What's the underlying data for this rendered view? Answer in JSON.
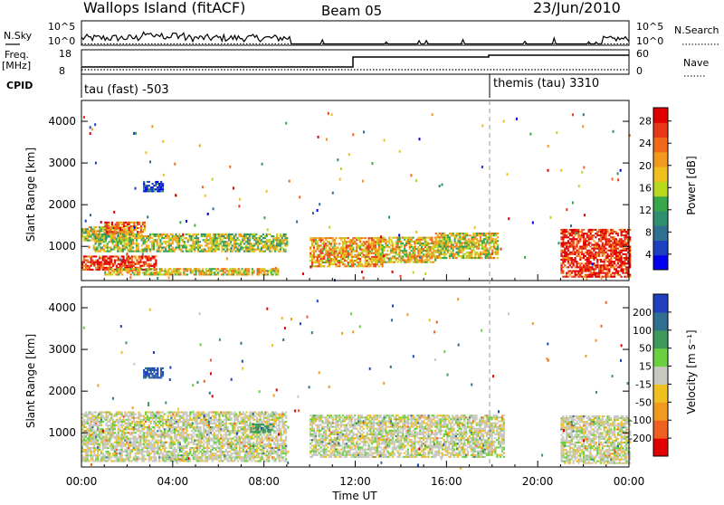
{
  "header": {
    "station": "Wallops Island (fitACF)",
    "beam": "Beam 05",
    "date": "23/Jun/2010"
  },
  "top_panels": {
    "nsky_label": "N.Sky",
    "nsky_ticks": [
      "10^5",
      "10^0"
    ],
    "nsearch_label": "N.Search",
    "nsearch_ticks": [
      "10^5",
      "10^0"
    ],
    "freq_label": "Freq.",
    "freq_unit": "[MHz]",
    "freq_ticks": [
      "18",
      "8"
    ],
    "nave_label": "Nave",
    "nave_ticks": [
      "60",
      "0"
    ],
    "cpid_label": "CPID",
    "cpid_entries": [
      {
        "text": "tau (fast) -503",
        "start_hour": 0
      },
      {
        "text": "themis (tau) 3310",
        "start_hour": 18
      }
    ]
  },
  "chart_data": [
    {
      "type": "heatmap",
      "name": "power",
      "ylabel": "Slant Range [km]",
      "ylim": [
        180,
        4500
      ],
      "yticks": [
        "4000",
        "3000",
        "2000",
        "1000"
      ],
      "xlim": [
        0,
        24
      ],
      "colorbar": {
        "label": "Power [dB]",
        "ticks": [
          "28",
          "24",
          "20",
          "16",
          "12",
          "8",
          "4"
        ],
        "colors": [
          "#0000ee",
          "#1e3fbf",
          "#2f6f8f",
          "#2f8f6f",
          "#36a84a",
          "#b8d820",
          "#f0c020",
          "#f29a20",
          "#ee6a18",
          "#e83818",
          "#e00000"
        ]
      },
      "regions": [
        {
          "t": [
            0.0,
            3.3
          ],
          "r": [
            420,
            780
          ],
          "level": 0.92
        },
        {
          "t": [
            0.0,
            2.2
          ],
          "r": [
            1120,
            1480
          ],
          "level": 0.55
        },
        {
          "t": [
            1.0,
            2.8
          ],
          "r": [
            1280,
            1560
          ],
          "level": 0.78
        },
        {
          "t": [
            0.5,
            9.0
          ],
          "r": [
            860,
            1300
          ],
          "level": 0.5
        },
        {
          "t": [
            1.0,
            8.6
          ],
          "r": [
            300,
            480
          ],
          "level": 0.6
        },
        {
          "t": [
            2.7,
            3.6
          ],
          "r": [
            2300,
            2560
          ],
          "level": 0.15
        },
        {
          "t": [
            10.0,
            13.2
          ],
          "r": [
            500,
            1200
          ],
          "level": 0.68
        },
        {
          "t": [
            13.0,
            15.5
          ],
          "r": [
            600,
            1200
          ],
          "level": 0.6
        },
        {
          "t": [
            15.5,
            18.2
          ],
          "r": [
            700,
            1300
          ],
          "level": 0.58
        },
        {
          "t": [
            21.0,
            24.0
          ],
          "r": [
            250,
            1400
          ],
          "level": 0.95
        }
      ]
    },
    {
      "type": "heatmap",
      "name": "velocity",
      "ylabel": "Slant Range [km]",
      "xlabel": "Time UT",
      "ylim": [
        180,
        4500
      ],
      "yticks": [
        "4000",
        "3000",
        "2000",
        "1000"
      ],
      "xlim": [
        0,
        24
      ],
      "xticks": [
        "00:00",
        "04:00",
        "08:00",
        "12:00",
        "16:00",
        "20:00",
        "00:00"
      ],
      "colorbar": {
        "label": "Velocity [m s⁻¹]",
        "ticks": [
          "200",
          "100",
          "50",
          "15",
          "-15",
          "-50",
          "-100",
          "-200"
        ],
        "colors": [
          "#2040c0",
          "#2f6f8f",
          "#3d9a5a",
          "#6ad040",
          "#c8c8c0",
          "#f0c020",
          "#f29a20",
          "#ee6020",
          "#e00000"
        ]
      },
      "regions": [
        {
          "t": [
            0.0,
            9.0
          ],
          "r": [
            300,
            1500
          ],
          "value": 0
        },
        {
          "t": [
            2.7,
            3.6
          ],
          "r": [
            2300,
            2560
          ],
          "value": 150
        },
        {
          "t": [
            7.4,
            8.4
          ],
          "r": [
            1000,
            1200
          ],
          "value": 60
        },
        {
          "t": [
            10.0,
            18.5
          ],
          "r": [
            400,
            1400
          ],
          "value": 0
        },
        {
          "t": [
            21.0,
            24.0
          ],
          "r": [
            250,
            1400
          ],
          "value": 0
        }
      ]
    }
  ]
}
